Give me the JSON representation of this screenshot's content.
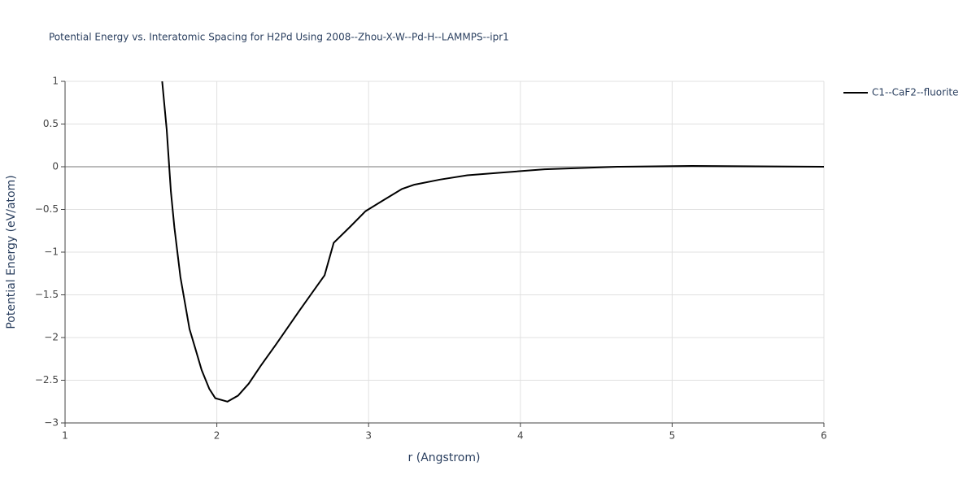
{
  "chart_data": {
    "type": "line",
    "title": "Potential Energy vs. Interatomic Spacing for H2Pd Using 2008--Zhou-X-W--Pd-H--LAMMPS--ipr1",
    "x_label": "r (Angstrom)",
    "y_label": "Potential Energy (eV/atom)",
    "x": [
      1.64,
      1.67,
      1.697,
      1.72,
      1.76,
      1.82,
      1.86,
      1.9,
      1.95,
      1.99,
      2.07,
      2.14,
      2.21,
      2.29,
      2.39,
      2.55,
      2.71,
      2.77,
      2.88,
      2.98,
      3.09,
      3.22,
      3.3,
      3.47,
      3.65,
      3.89,
      4.16,
      4.64,
      5.13,
      6.0
    ],
    "series": [
      {
        "name": "C1--CaF2--fluorite",
        "color": "#000000",
        "values": [
          1.0,
          0.43,
          -0.29,
          -0.71,
          -1.29,
          -1.9,
          -2.14,
          -2.38,
          -2.6,
          -2.71,
          -2.75,
          -2.68,
          -2.54,
          -2.33,
          -2.08,
          -1.67,
          -1.27,
          -0.89,
          -0.7,
          -0.52,
          -0.4,
          -0.26,
          -0.21,
          -0.15,
          -0.1,
          -0.067,
          -0.03,
          0.0,
          0.01,
          0.0
        ]
      }
    ],
    "xlim": [
      1,
      6
    ],
    "xticks": [
      1,
      2,
      3,
      4,
      5,
      6
    ],
    "ylim": [
      -3,
      1
    ],
    "yticks": [
      {
        "value": -3,
        "label": "−3"
      },
      {
        "value": -2.5,
        "label": "−2.5"
      },
      {
        "value": -2,
        "label": "−2"
      },
      {
        "value": -1.5,
        "label": "−1.5"
      },
      {
        "value": -1,
        "label": "−1"
      },
      {
        "value": -0.5,
        "label": "−0.5"
      },
      0,
      0.5,
      1
    ],
    "grid": true,
    "legend": "right"
  }
}
